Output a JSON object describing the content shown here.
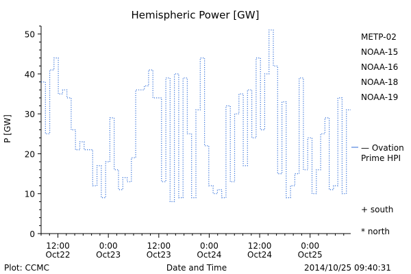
{
  "chart_data": {
    "type": "line",
    "title": "Hemispheric Power [GW]",
    "ylabel": "P [GW]",
    "xlabel": "Date and Time",
    "ylim": [
      0,
      52
    ],
    "yticks": [
      0,
      10,
      20,
      30,
      40,
      50
    ],
    "xlim": [
      "2014-10-22 08:00",
      "2014-10-25 09:40"
    ],
    "xticks": [
      {
        "t": "2014-10-22 12:00",
        "l1": "12:00",
        "l2": "Oct22"
      },
      {
        "t": "2014-10-23 00:00",
        "l1": "0:00",
        "l2": "Oct23"
      },
      {
        "t": "2014-10-23 12:00",
        "l1": "12:00",
        "l2": "Oct23"
      },
      {
        "t": "2014-10-24 00:00",
        "l1": "0:00",
        "l2": "Oct24"
      },
      {
        "t": "2014-10-24 12:00",
        "l1": "12:00",
        "l2": "Oct24"
      },
      {
        "t": "2014-10-25 00:00",
        "l1": "0:00",
        "l2": "Oct25"
      }
    ],
    "legend": [
      {
        "name": "METP-02",
        "color": "#000000"
      },
      {
        "name": "NOAA-15",
        "color": "#1f3fc8"
      },
      {
        "name": "NOAA-16",
        "color": "#18b8c8"
      },
      {
        "name": "NOAA-18",
        "color": "#28c878"
      },
      {
        "name": "NOAA-19",
        "color": "#e89020"
      }
    ],
    "legend_position": "right",
    "series": [
      {
        "name": "Ovation Prime HPI",
        "label": "— Ovation Prime HPI",
        "color": "#2c6bd8",
        "style": "step-dotted",
        "values": [
          38,
          25,
          41,
          44,
          35,
          36,
          34,
          26,
          21,
          23,
          21,
          21,
          12,
          17,
          9,
          18,
          29,
          16,
          11,
          14,
          13,
          19,
          36,
          36,
          37,
          41,
          34,
          34,
          13,
          39,
          8,
          40,
          9,
          39,
          25,
          9,
          31,
          44,
          22,
          12,
          10,
          11,
          9,
          32,
          13,
          30,
          35,
          17,
          36,
          24,
          44,
          26,
          40,
          51,
          42,
          15,
          33,
          9,
          12,
          15,
          39,
          16,
          24,
          10,
          16,
          25,
          29,
          11,
          12,
          34,
          10,
          31
        ]
      }
    ],
    "markers": {
      "south": "+ south",
      "north": "* north"
    },
    "grid": false
  },
  "footer": {
    "plot_label": "Plot: CCMC",
    "timestamp": "2014/10/25 09:40:31"
  }
}
